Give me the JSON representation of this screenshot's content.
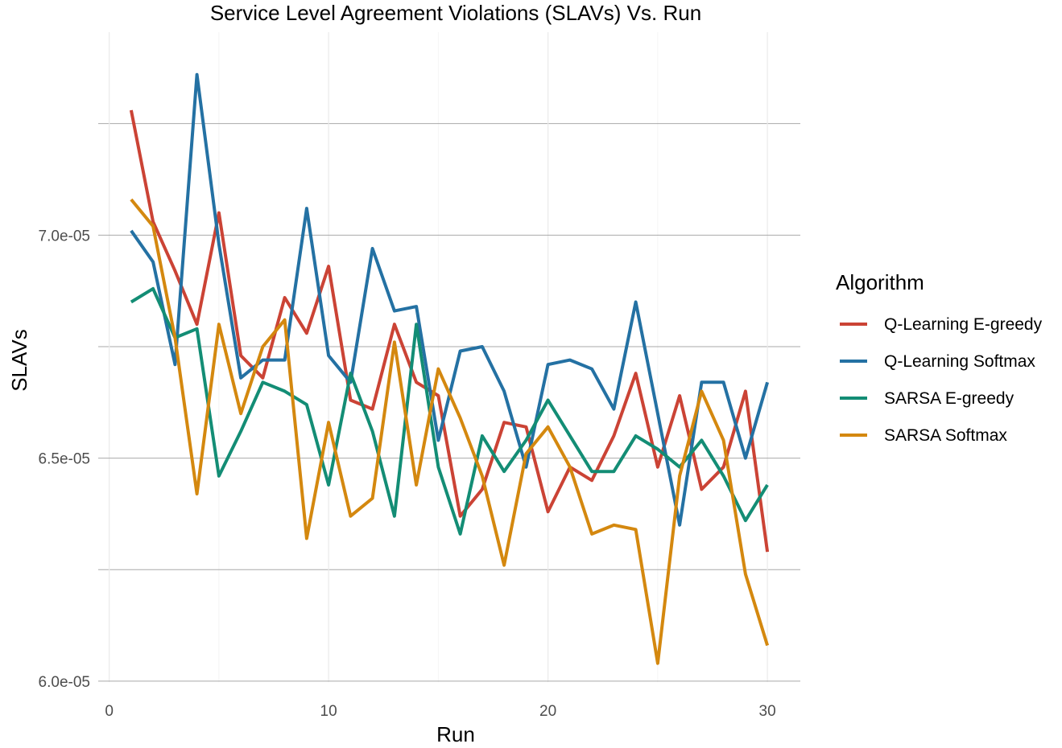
{
  "chart_data": {
    "type": "line",
    "title": "Service Level Agreement Violations (SLAVs) Vs. Run",
    "xlabel": "Run",
    "ylabel": "SLAVs",
    "xlim": [
      -0.5,
      31.5
    ],
    "ylim": [
      5.998e-05,
      7.455e-05
    ],
    "x_ticks": [
      0,
      10,
      20,
      30
    ],
    "x_tick_labels": [
      "0",
      "10",
      "20",
      "30"
    ],
    "y_ticks": [
      6e-05,
      6.5e-05,
      7e-05
    ],
    "y_tick_labels": [
      "6.0e-05",
      "6.5e-05",
      "7.0e-05"
    ],
    "grid": true,
    "legend": {
      "title": "Algorithm",
      "position": "right"
    },
    "x": [
      1,
      2,
      3,
      4,
      5,
      6,
      7,
      8,
      9,
      10,
      11,
      12,
      13,
      14,
      15,
      16,
      17,
      18,
      19,
      20,
      21,
      22,
      23,
      24,
      25,
      26,
      27,
      28,
      29,
      30
    ],
    "series": [
      {
        "name": "Q-Learning E-greedy",
        "color": "#CB4335",
        "values": [
          7.28e-05,
          7.03e-05,
          6.92e-05,
          6.8e-05,
          7.05e-05,
          6.73e-05,
          6.68e-05,
          6.86e-05,
          6.78e-05,
          6.93e-05,
          6.63e-05,
          6.61e-05,
          6.8e-05,
          6.67e-05,
          6.64e-05,
          6.37e-05,
          6.43e-05,
          6.58e-05,
          6.57e-05,
          6.38e-05,
          6.48e-05,
          6.45e-05,
          6.55e-05,
          6.69e-05,
          6.48e-05,
          6.64e-05,
          6.43e-05,
          6.48e-05,
          6.65e-05,
          6.29e-05
        ]
      },
      {
        "name": "Q-Learning Softmax",
        "color": "#2471A3",
        "values": [
          7.01e-05,
          6.94e-05,
          6.71e-05,
          7.36e-05,
          6.98e-05,
          6.68e-05,
          6.72e-05,
          6.72e-05,
          7.06e-05,
          6.73e-05,
          6.67e-05,
          6.97e-05,
          6.83e-05,
          6.84e-05,
          6.54e-05,
          6.74e-05,
          6.75e-05,
          6.65e-05,
          6.48e-05,
          6.71e-05,
          6.72e-05,
          6.7e-05,
          6.61e-05,
          6.85e-05,
          6.6e-05,
          6.35e-05,
          6.67e-05,
          6.67e-05,
          6.5e-05,
          6.67e-05
        ]
      },
      {
        "name": "SARSA E-greedy",
        "color": "#138D75",
        "values": [
          6.85e-05,
          6.88e-05,
          6.77e-05,
          6.79e-05,
          6.46e-05,
          6.56e-05,
          6.67e-05,
          6.65e-05,
          6.62e-05,
          6.44e-05,
          6.69e-05,
          6.56e-05,
          6.37e-05,
          6.8e-05,
          6.48e-05,
          6.33e-05,
          6.55e-05,
          6.47e-05,
          6.54e-05,
          6.63e-05,
          6.55e-05,
          6.47e-05,
          6.47e-05,
          6.55e-05,
          6.52e-05,
          6.48e-05,
          6.54e-05,
          6.46e-05,
          6.36e-05,
          6.44e-05
        ]
      },
      {
        "name": "SARSA Softmax",
        "color": "#D4880F",
        "values": [
          7.08e-05,
          7.02e-05,
          6.77e-05,
          6.42e-05,
          6.8e-05,
          6.6e-05,
          6.75e-05,
          6.81e-05,
          6.32e-05,
          6.58e-05,
          6.37e-05,
          6.41e-05,
          6.76e-05,
          6.44e-05,
          6.7e-05,
          6.59e-05,
          6.46e-05,
          6.26e-05,
          6.51e-05,
          6.57e-05,
          6.48e-05,
          6.33e-05,
          6.35e-05,
          6.34e-05,
          6.04e-05,
          6.46e-05,
          6.65e-05,
          6.54e-05,
          6.24e-05,
          6.08e-05
        ]
      }
    ]
  }
}
